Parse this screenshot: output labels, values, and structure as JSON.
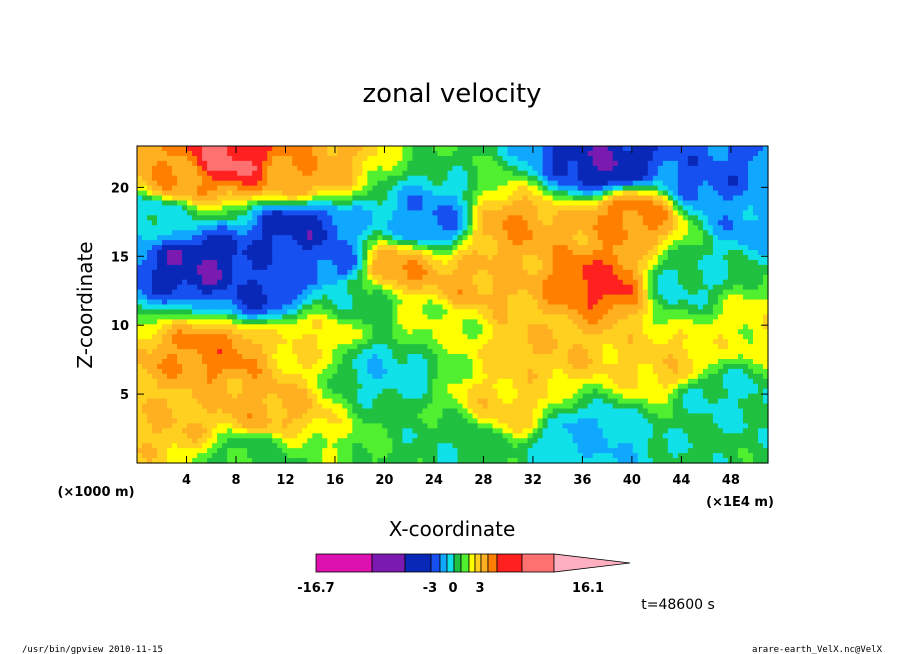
{
  "chart_data": {
    "type": "heatmap",
    "title": "zonal velocity",
    "xlabel": "X-coordinate",
    "ylabel": "Z-coordinate",
    "x_unit_left": "(×1000 m)",
    "x_unit_right": "(×1E4 m)",
    "xlim": [
      0,
      51
    ],
    "ylim": [
      0,
      23
    ],
    "x_ticks": [
      4,
      8,
      12,
      16,
      20,
      24,
      28,
      32,
      36,
      40,
      44,
      48
    ],
    "y_ticks": [
      5,
      10,
      15,
      20
    ],
    "colorbar": {
      "colors": [
        "#dd10b0",
        "#7a1ab0",
        "#0a28b8",
        "#1650f0",
        "#10a8ff",
        "#10e0e8",
        "#20c040",
        "#50f030",
        "#ffff00",
        "#ffd020",
        "#ffb020",
        "#ff8000",
        "#ff2020",
        "#ff7070",
        "#ffb0c0"
      ],
      "labels": [
        "-16.7",
        "-3",
        "0",
        "3",
        "16.1"
      ],
      "value_range": [
        -16.7,
        16.1
      ]
    },
    "time_label": "t=48600 s",
    "field_features": [
      {
        "x": 5,
        "z": 14.5,
        "v": -12
      },
      {
        "x": 10,
        "z": 12.5,
        "v": -10
      },
      {
        "x": 13,
        "z": 17,
        "v": -11
      },
      {
        "x": 15.5,
        "z": 14.5,
        "v": -9
      },
      {
        "x": 24,
        "z": 17.5,
        "v": -8
      },
      {
        "x": 38,
        "z": 21.5,
        "v": -12
      },
      {
        "x": 46,
        "z": 20.5,
        "v": -9
      },
      {
        "x": 50,
        "z": 18,
        "v": -7
      },
      {
        "x": 1,
        "z": 18,
        "v": -5
      },
      {
        "x": 44,
        "z": 13,
        "v": -4
      },
      {
        "x": 36,
        "z": 2,
        "v": -6
      },
      {
        "x": 26,
        "z": 1.5,
        "v": -3
      },
      {
        "x": 9,
        "z": 0.5,
        "v": -2
      },
      {
        "x": 47,
        "z": 5,
        "v": -4
      },
      {
        "x": 20,
        "z": 7,
        "v": -5
      },
      {
        "x": 18,
        "z": 12,
        "v": -3
      },
      {
        "x": 7.5,
        "z": 22,
        "v": 12
      },
      {
        "x": 3,
        "z": 20.5,
        "v": 7
      },
      {
        "x": 13,
        "z": 21,
        "v": 7
      },
      {
        "x": 40,
        "z": 18,
        "v": 8
      },
      {
        "x": 30,
        "z": 17,
        "v": 7
      },
      {
        "x": 38,
        "z": 13,
        "v": 10
      },
      {
        "x": 21,
        "z": 14,
        "v": 7
      },
      {
        "x": 27,
        "z": 13,
        "v": 6
      },
      {
        "x": 6.5,
        "z": 8,
        "v": 8
      },
      {
        "x": 10,
        "z": 4,
        "v": 6
      },
      {
        "x": 3,
        "z": 3,
        "v": 5
      },
      {
        "x": 33,
        "z": 8.5,
        "v": 5
      },
      {
        "x": 30,
        "z": 4,
        "v": 4
      },
      {
        "x": 43,
        "z": 7,
        "v": 4
      },
      {
        "x": 14,
        "z": 9,
        "v": 3
      },
      {
        "x": 24,
        "z": 10,
        "v": 1
      },
      {
        "x": 50,
        "z": 10,
        "v": 2
      }
    ]
  },
  "footer": {
    "left": "/usr/bin/gpview  2010-11-15",
    "right": "arare-earth_VelX.nc@VelX"
  }
}
